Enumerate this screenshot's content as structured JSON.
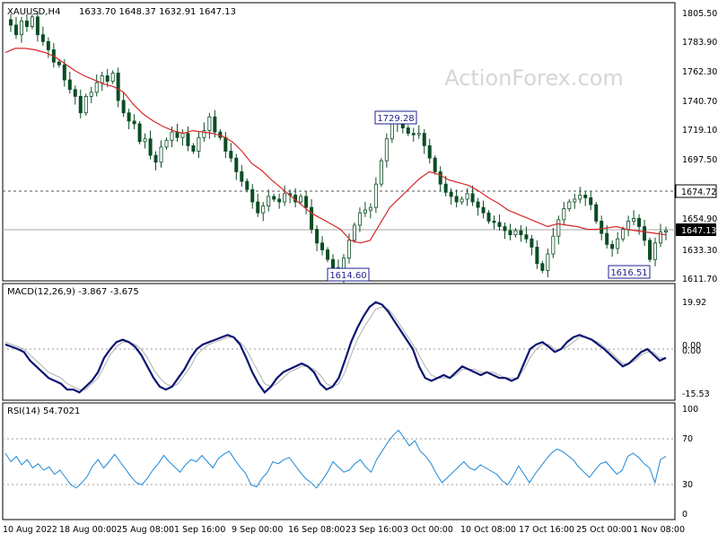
{
  "chart_data": [
    {
      "type": "candlestick",
      "symbol_header": "XAUUSD,H4",
      "ohlc_header": "1633.70 1648.37 1632.91 1647.13",
      "watermark": "ActionForex.com",
      "y_ticks": [
        "1805.50",
        "1783.90",
        "1762.30",
        "1740.70",
        "1719.10",
        "1697.50",
        "1674.72",
        "1654.90",
        "1647.13",
        "1633.30",
        "1611.70"
      ],
      "ylim": [
        1605.6,
        1813.2
      ],
      "x_ticks": [
        "10 Aug 2022",
        "18 Aug 00:00",
        "25 Aug 08:00",
        "1 Sep 16:00",
        "9 Sep 00:00",
        "16 Sep 08:00",
        "23 Sep 16:00",
        "3 Oct 00:00",
        "10 Oct 08:00",
        "17 Oct 16:00",
        "25 Oct 00:00",
        "1 Nov 08:00"
      ],
      "resistance_level": 1674.72,
      "current_price": 1647.13,
      "annotations": [
        {
          "label": "1729.28",
          "value": 1729.28
        },
        {
          "label": "1614.60",
          "value": 1614.6
        },
        {
          "label": "1616.51",
          "value": 1616.51
        }
      ],
      "price_path": [
        1801,
        1797,
        1790,
        1800,
        1796,
        1803,
        1790,
        1785,
        1779,
        1770,
        1768,
        1757,
        1750,
        1745,
        1733,
        1745,
        1748,
        1755,
        1760,
        1756,
        1762,
        1742,
        1733,
        1727,
        1725,
        1712,
        1714,
        1702,
        1697,
        1708,
        1713,
        1719,
        1715,
        1718,
        1709,
        1705,
        1715,
        1720,
        1730,
        1719,
        1715,
        1705,
        1700,
        1690,
        1683,
        1677,
        1668,
        1660,
        1665,
        1672,
        1670,
        1668,
        1674,
        1673,
        1668,
        1672,
        1664,
        1648,
        1638,
        1633,
        1626,
        1620,
        1615,
        1627,
        1640,
        1651,
        1660,
        1662,
        1664,
        1681,
        1698,
        1714,
        1727,
        1725,
        1722,
        1718,
        1717,
        1718,
        1709,
        1700,
        1690,
        1681,
        1675,
        1672,
        1668,
        1670,
        1674,
        1668,
        1664,
        1660,
        1654,
        1653,
        1650,
        1647,
        1644,
        1647,
        1644,
        1641,
        1635,
        1623,
        1618,
        1630,
        1643,
        1655,
        1663,
        1668,
        1670,
        1673,
        1671,
        1666,
        1654,
        1645,
        1637,
        1634,
        1641,
        1648,
        1654,
        1656,
        1650,
        1640,
        1626,
        1638,
        1646,
        1647
      ],
      "ma_path": [
        1777,
        1780,
        1780,
        1779,
        1777,
        1774,
        1769,
        1764,
        1760,
        1757,
        1754,
        1752,
        1748,
        1739,
        1732,
        1727,
        1723,
        1720,
        1718,
        1720,
        1719,
        1718,
        1716,
        1712,
        1705,
        1696,
        1691,
        1684,
        1678,
        1672,
        1666,
        1660,
        1656,
        1652,
        1648,
        1640,
        1638,
        1640,
        1652,
        1664,
        1671,
        1678,
        1685,
        1690,
        1688,
        1684,
        1682,
        1680,
        1676,
        1671,
        1667,
        1662,
        1659,
        1656,
        1653,
        1650,
        1652,
        1651,
        1650,
        1648,
        1648,
        1649,
        1650,
        1648,
        1647,
        1646,
        1645,
        1644
      ],
      "y_ticks_px": [],
      "panels_note": ""
    },
    {
      "type": "line",
      "indicator_header": "MACD(12,26,9) -3.867 -3.675",
      "y_ticks": [
        "19.92",
        "0.00",
        "0.00",
        "-15.53"
      ],
      "ylim": [
        -18.5,
        23.0
      ],
      "macd_path": [
        2,
        1,
        0,
        -1,
        -4,
        -6,
        -8,
        -10,
        -11,
        -12,
        -14,
        -14,
        -15,
        -13,
        -11,
        -8,
        -3,
        0,
        3,
        4,
        3,
        1,
        -2,
        -6,
        -10,
        -13,
        -14,
        -13,
        -10,
        -7,
        -3,
        0,
        2,
        3,
        4,
        5,
        6,
        5,
        2,
        -3,
        -8,
        -12,
        -15,
        -13,
        -10,
        -8,
        -7,
        -6,
        -5,
        -6,
        -8,
        -12,
        -14,
        -13,
        -10,
        -4,
        3,
        9,
        14,
        18,
        20,
        19,
        16,
        12,
        8,
        4,
        0,
        -6,
        -10,
        -11,
        -10,
        -9,
        -10,
        -8,
        -6,
        -7,
        -8,
        -9,
        -8,
        -9,
        -10,
        -10,
        -11,
        -10,
        -5,
        0,
        2,
        3,
        1,
        -1,
        0,
        3,
        5,
        6,
        5,
        4,
        2,
        0,
        -2,
        -4,
        -6,
        -5,
        -3,
        -1,
        0,
        -2,
        -4,
        -3
      ],
      "signal_path": [
        3,
        2,
        1,
        0,
        -2,
        -4,
        -6,
        -8,
        -9,
        -10,
        -12,
        -13,
        -14,
        -14,
        -12,
        -10,
        -6,
        -2,
        1,
        3,
        3,
        2,
        0,
        -3,
        -7,
        -10,
        -12,
        -13,
        -12,
        -9,
        -6,
        -2,
        0,
        2,
        3,
        4,
        5,
        5,
        3,
        0,
        -4,
        -8,
        -12,
        -13,
        -12,
        -10,
        -8,
        -7,
        -6,
        -6,
        -7,
        -9,
        -12,
        -13,
        -12,
        -8,
        -2,
        4,
        9,
        13,
        17,
        18,
        17,
        14,
        10,
        6,
        2,
        -2,
        -6,
        -9,
        -10,
        -10,
        -10,
        -9,
        -7,
        -7,
        -7,
        -8,
        -8,
        -8,
        -9,
        -10,
        -10,
        -10,
        -7,
        -3,
        0,
        2,
        2,
        0,
        0,
        1,
        3,
        5,
        5,
        4,
        3,
        1,
        -1,
        -3,
        -5,
        -5,
        -4,
        -2,
        -1,
        -1,
        -3,
        -3
      ]
    },
    {
      "type": "line",
      "indicator_header": "RSI(14) 54.7021",
      "y_ticks": [
        "100",
        "70",
        "30",
        "0"
      ],
      "ylim": [
        0,
        100
      ],
      "levels": [
        70,
        30
      ],
      "rsi_path": [
        58,
        50,
        55,
        47,
        52,
        44,
        48,
        42,
        45,
        38,
        42,
        35,
        28,
        25,
        30,
        36,
        46,
        52,
        44,
        50,
        57,
        50,
        43,
        36,
        30,
        28,
        34,
        42,
        48,
        56,
        50,
        45,
        40,
        47,
        52,
        50,
        56,
        50,
        44,
        53,
        57,
        60,
        52,
        45,
        39,
        28,
        26,
        34,
        40,
        50,
        48,
        52,
        54,
        47,
        40,
        34,
        30,
        25,
        32,
        40,
        50,
        45,
        40,
        42,
        48,
        52,
        45,
        40,
        52,
        60,
        68,
        75,
        80,
        73,
        65,
        70,
        60,
        55,
        48,
        38,
        30,
        35,
        40,
        45,
        50,
        44,
        42,
        47,
        44,
        41,
        38,
        32,
        28,
        36,
        46,
        38,
        30,
        38,
        45,
        52,
        58,
        62,
        60,
        56,
        52,
        45,
        40,
        35,
        42,
        48,
        50,
        44,
        38,
        42,
        55,
        58,
        54,
        48,
        44,
        30,
        52,
        55
      ]
    }
  ]
}
